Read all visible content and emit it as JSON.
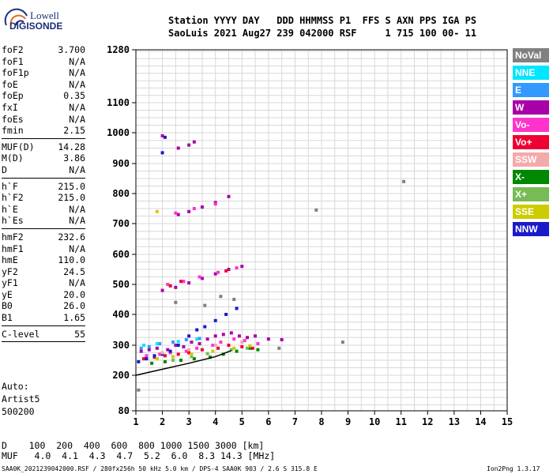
{
  "logo": {
    "line1": "Lowell",
    "line2": "DIGISONDE"
  },
  "header": {
    "row1": "Station YYYY DAY   DDD HHMMSS P1  FFS S AXN PPS IGA PS",
    "row2": "SaoLuis 2021 Aug27 239 042000 RSF     1 715 100 00- 11"
  },
  "params": {
    "group1": [
      {
        "label": "foF2",
        "value": "3.700"
      },
      {
        "label": "foF1",
        "value": "N/A"
      },
      {
        "label": "foF1p",
        "value": "N/A"
      },
      {
        "label": "foE",
        "value": "N/A"
      },
      {
        "label": "foEp",
        "value": "0.35"
      },
      {
        "label": "fxI",
        "value": "N/A"
      },
      {
        "label": "foEs",
        "value": "N/A"
      },
      {
        "label": "fmin",
        "value": "2.15"
      }
    ],
    "group2": [
      {
        "label": "MUF(D)",
        "value": "14.28"
      },
      {
        "label": "M(D)",
        "value": "3.86"
      },
      {
        "label": "D",
        "value": "N/A"
      }
    ],
    "group3": [
      {
        "label": "h`F",
        "value": "215.0"
      },
      {
        "label": "h`F2",
        "value": "215.0"
      },
      {
        "label": "h`E",
        "value": "N/A"
      },
      {
        "label": "h`Es",
        "value": "N/A"
      }
    ],
    "group4": [
      {
        "label": "hmF2",
        "value": "232.6"
      },
      {
        "label": "hmF1",
        "value": "N/A"
      },
      {
        "label": "hmE",
        "value": "110.0"
      },
      {
        "label": "yF2",
        "value": "24.5"
      },
      {
        "label": "yF1",
        "value": "N/A"
      },
      {
        "label": "yE",
        "value": "20.0"
      },
      {
        "label": "B0",
        "value": "26.0"
      },
      {
        "label": "B1",
        "value": "1.65"
      }
    ],
    "group5": [
      {
        "label": "C-level",
        "value": "55"
      }
    ]
  },
  "auto": {
    "line1": "Auto:",
    "line2": "Artist5",
    "line3": "500200"
  },
  "legend": [
    {
      "label": "NoVal",
      "color": "#808080"
    },
    {
      "label": "NNE",
      "color": "#00e6ff"
    },
    {
      "label": "E",
      "color": "#3399ff"
    },
    {
      "label": "W",
      "color": "#a800a8"
    },
    {
      "label": "Vo-",
      "color": "#ff33cc"
    },
    {
      "label": "Vo+",
      "color": "#ee0033"
    },
    {
      "label": "SSW",
      "color": "#f4aaaa"
    },
    {
      "label": "X-",
      "color": "#008800"
    },
    {
      "label": "X+",
      "color": "#77bb55"
    },
    {
      "label": "SSE",
      "color": "#cccc00"
    },
    {
      "label": "NNW",
      "color": "#1a1acc"
    }
  ],
  "conversion": {
    "row1": "D    100  200  400  600  800 1000 1500 3000 [km]",
    "row2": "MUF   4.0  4.1  4.3  4.7  5.2  6.0  8.3 14.3 [MHz]"
  },
  "footer": {
    "left": "SAA0K_2021239042000.RSF / 280fx256h 50 kHz 5.0 km / DPS-4 SAA0K 903 / 2.6 S 315.8 E",
    "right": "Ion2Png 1.3.17"
  },
  "chart_data": {
    "type": "scatter",
    "xlim": [
      1,
      15
    ],
    "ylim": [
      80,
      1280
    ],
    "x_ticks": [
      1,
      2,
      3,
      4,
      5,
      6,
      7,
      8,
      9,
      10,
      11,
      12,
      13,
      14,
      15
    ],
    "y_ticks": [
      80,
      200,
      300,
      400,
      500,
      600,
      700,
      800,
      900,
      1000,
      1100,
      1280
    ],
    "grid": true,
    "trace": {
      "description": "virtual height trace",
      "x": [
        1.0,
        2.0,
        3.0,
        4.0,
        4.6
      ],
      "y": [
        200,
        220,
        240,
        262,
        282
      ]
    },
    "series": [
      {
        "name": "W",
        "color": "#a800a8",
        "x": [
          1.2,
          1.5,
          1.8,
          2.2,
          2.5,
          2.8,
          3.1,
          3.4,
          3.7,
          4.0,
          4.3,
          4.6,
          4.9,
          5.2,
          5.5,
          6.0,
          6.5,
          2.0,
          2.5,
          3.0,
          3.5,
          4.0,
          4.5,
          5.0,
          2.6,
          3.0,
          3.5,
          4.0,
          4.5,
          2.6,
          3.0,
          3.2,
          2.0
        ],
        "y": [
          280,
          285,
          290,
          285,
          300,
          295,
          310,
          305,
          320,
          330,
          335,
          340,
          330,
          325,
          330,
          320,
          318,
          480,
          490,
          505,
          520,
          535,
          550,
          560,
          730,
          740,
          755,
          770,
          790,
          950,
          960,
          970,
          990
        ]
      },
      {
        "name": "Vo-",
        "color": "#ff33cc",
        "x": [
          1.4,
          1.9,
          2.3,
          2.9,
          3.3,
          3.9,
          4.2,
          4.7,
          5.1,
          5.6,
          2.2,
          2.8,
          3.4,
          4.1,
          4.8,
          2.5,
          3.2,
          4.0
        ],
        "y": [
          265,
          270,
          275,
          280,
          290,
          300,
          310,
          320,
          315,
          305,
          500,
          510,
          525,
          540,
          555,
          735,
          750,
          765
        ]
      },
      {
        "name": "Vo+",
        "color": "#ee0033",
        "x": [
          1.3,
          1.7,
          2.1,
          2.6,
          3.0,
          3.5,
          4.1,
          4.5,
          5.0,
          5.4,
          2.3,
          2.7,
          4.4
        ],
        "y": [
          255,
          260,
          265,
          270,
          275,
          285,
          290,
          300,
          295,
          290,
          495,
          510,
          545
        ]
      },
      {
        "name": "NNW",
        "color": "#1a1acc",
        "x": [
          1.1,
          1.4,
          1.7,
          2.0,
          2.3,
          2.6,
          3.0,
          3.3,
          3.6,
          4.0,
          4.4,
          4.8,
          2.0,
          2.1
        ],
        "y": [
          245,
          255,
          265,
          270,
          280,
          300,
          330,
          350,
          360,
          380,
          400,
          420,
          935,
          985
        ]
      },
      {
        "name": "X-",
        "color": "#008800",
        "x": [
          1.6,
          2.1,
          2.7,
          3.2,
          3.8,
          4.3,
          4.8,
          5.3,
          5.6
        ],
        "y": [
          240,
          245,
          250,
          255,
          260,
          270,
          280,
          290,
          285
        ]
      },
      {
        "name": "X+",
        "color": "#77bb55",
        "x": [
          2.4,
          3.1,
          3.7,
          4.6,
          5.2
        ],
        "y": [
          250,
          262,
          272,
          285,
          290
        ]
      },
      {
        "name": "SSE",
        "color": "#cccc00",
        "x": [
          1.8,
          2.4,
          3.1,
          3.9,
          4.7,
          5.3,
          1.8
        ],
        "y": [
          255,
          262,
          270,
          280,
          290,
          298,
          740
        ]
      },
      {
        "name": "SSW",
        "color": "#f4aaaa",
        "x": [
          2.0,
          3.0,
          4.0,
          5.0
        ],
        "y": [
          275,
          285,
          300,
          310
        ]
      },
      {
        "name": "E",
        "color": "#3399ff",
        "x": [
          1.2,
          1.5,
          1.9,
          2.4,
          2.9,
          3.4
        ],
        "y": [
          290,
          295,
          305,
          310,
          318,
          322
        ]
      },
      {
        "name": "NNE",
        "color": "#00e6ff",
        "x": [
          1.3,
          1.8,
          2.6,
          3.3
        ],
        "y": [
          300,
          305,
          312,
          320
        ]
      },
      {
        "name": "NoVal",
        "color": "#808080",
        "x": [
          2.5,
          3.6,
          4.2,
          4.7,
          8.8,
          7.8,
          6.4,
          11.1,
          1.1
        ],
        "y": [
          440,
          430,
          460,
          450,
          310,
          745,
          290,
          840,
          150
        ]
      }
    ]
  }
}
